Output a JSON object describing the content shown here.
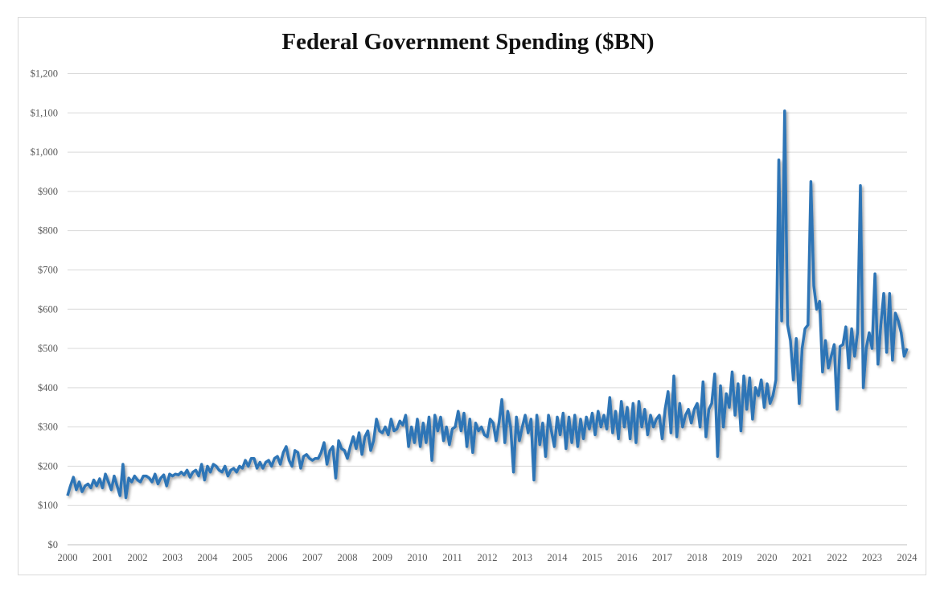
{
  "chart_data": {
    "type": "line",
    "title": "Federal Government Spending ($BN)",
    "xlabel": "",
    "ylabel": "",
    "x_start": "2000-01",
    "x_frequency": "monthly",
    "xlim": [
      2000,
      2024
    ],
    "ylim": [
      0,
      1200
    ],
    "y_ticks": [
      0,
      100,
      200,
      300,
      400,
      500,
      600,
      700,
      800,
      900,
      1000,
      1100,
      1200
    ],
    "y_tick_labels": [
      "$0",
      "$100",
      "$200",
      "$300",
      "$400",
      "$500",
      "$600",
      "$700",
      "$800",
      "$900",
      "$1,000",
      "$1,100",
      "$1,200"
    ],
    "x_tick_labels": [
      "2000",
      "2001",
      "2002",
      "2003",
      "2004",
      "2005",
      "2006",
      "2007",
      "2008",
      "2009",
      "2010",
      "2011",
      "2012",
      "2013",
      "2014",
      "2015",
      "2016",
      "2017",
      "2018",
      "2019",
      "2020",
      "2021",
      "2022",
      "2023",
      "2024"
    ],
    "grid": "horizontal",
    "line_color": "#2e75b6",
    "series": [
      {
        "values": [
          125,
          150,
          172,
          140,
          160,
          135,
          150,
          155,
          145,
          165,
          150,
          168,
          145,
          180,
          160,
          140,
          175,
          150,
          125,
          205,
          120,
          170,
          160,
          175,
          165,
          160,
          175,
          175,
          170,
          160,
          180,
          155,
          170,
          178,
          150,
          180,
          175,
          180,
          178,
          185,
          178,
          190,
          172,
          185,
          190,
          175,
          205,
          165,
          200,
          185,
          205,
          200,
          190,
          185,
          200,
          175,
          190,
          195,
          185,
          200,
          195,
          215,
          200,
          220,
          220,
          195,
          210,
          195,
          210,
          215,
          200,
          220,
          225,
          205,
          235,
          250,
          215,
          200,
          240,
          235,
          195,
          225,
          230,
          220,
          215,
          220,
          220,
          235,
          260,
          205,
          240,
          250,
          170,
          265,
          245,
          240,
          220,
          250,
          275,
          245,
          285,
          230,
          275,
          290,
          240,
          265,
          320,
          290,
          285,
          300,
          280,
          320,
          290,
          295,
          315,
          305,
          330,
          250,
          300,
          260,
          320,
          250,
          310,
          260,
          325,
          215,
          330,
          290,
          325,
          265,
          300,
          255,
          295,
          300,
          340,
          290,
          335,
          250,
          320,
          235,
          310,
          290,
          300,
          280,
          275,
          320,
          310,
          265,
          310,
          370,
          260,
          340,
          300,
          185,
          325,
          265,
          300,
          330,
          285,
          320,
          165,
          330,
          255,
          310,
          225,
          330,
          290,
          250,
          325,
          280,
          335,
          245,
          325,
          260,
          330,
          250,
          320,
          270,
          325,
          295,
          335,
          280,
          340,
          300,
          330,
          295,
          375,
          285,
          340,
          270,
          365,
          300,
          350,
          270,
          360,
          260,
          365,
          300,
          345,
          280,
          330,
          300,
          320,
          330,
          270,
          345,
          390,
          285,
          430,
          275,
          360,
          300,
          330,
          345,
          310,
          345,
          360,
          300,
          415,
          275,
          345,
          360,
          435,
          225,
          405,
          300,
          385,
          350,
          440,
          330,
          410,
          290,
          430,
          345,
          425,
          320,
          400,
          380,
          420,
          350,
          410,
          360,
          380,
          420,
          980,
          570,
          1105,
          560,
          520,
          420,
          525,
          360,
          500,
          550,
          560,
          925,
          660,
          600,
          620,
          440,
          520,
          450,
          480,
          510,
          345,
          505,
          510,
          555,
          450,
          550,
          480,
          540,
          915,
          400,
          500,
          540,
          500,
          690,
          460,
          560,
          640,
          490,
          640,
          470,
          590,
          570,
          540,
          480,
          500
        ]
      }
    ]
  }
}
